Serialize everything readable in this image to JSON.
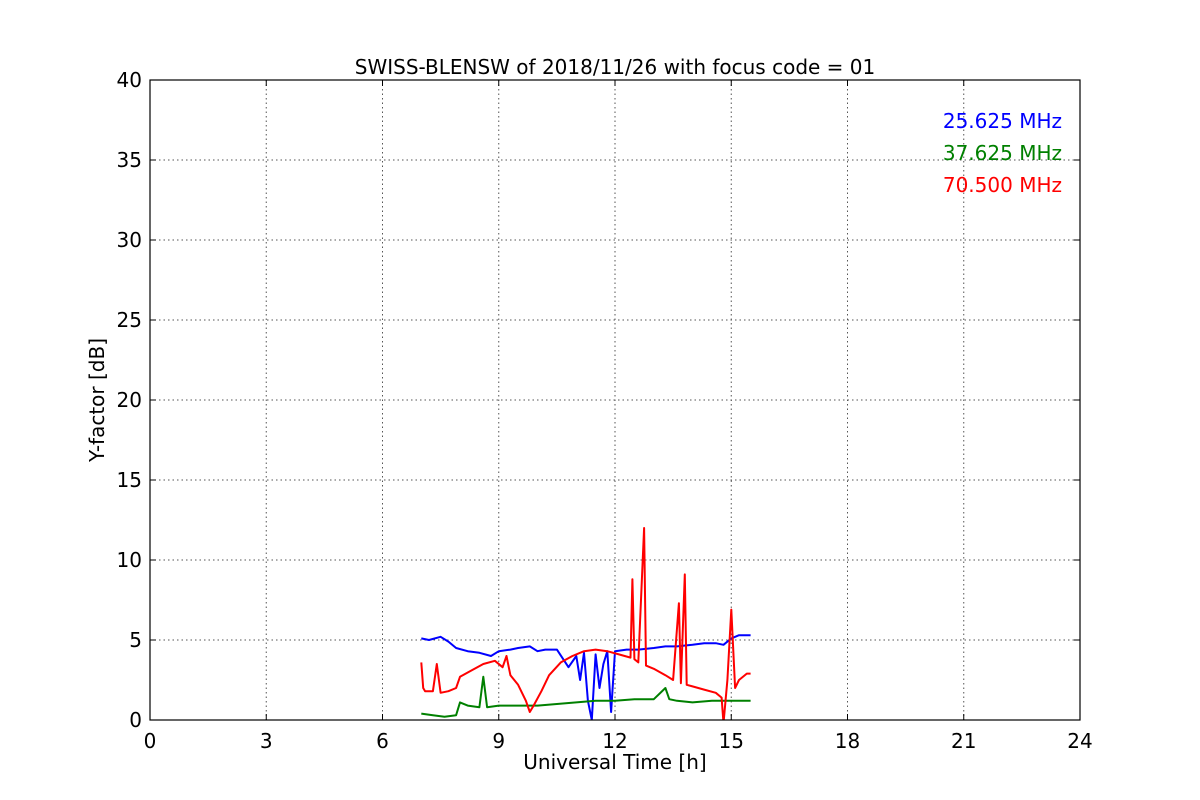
{
  "chart_data": {
    "type": "line",
    "title": "SWISS-BLENSW of 2018/11/26 with focus code = 01",
    "xlabel": "Universal Time [h]",
    "ylabel": "Y-factor [dB]",
    "xlim": [
      0,
      24
    ],
    "ylim": [
      0,
      40
    ],
    "x_ticks": [
      0,
      3,
      6,
      9,
      12,
      15,
      18,
      21,
      24
    ],
    "y_ticks": [
      0,
      5,
      10,
      15,
      20,
      25,
      30,
      35,
      40
    ],
    "grid": true,
    "legend_placement": "top-right",
    "series": [
      {
        "name": "25.625 MHz",
        "color": "#0000ff",
        "x": [
          7.0,
          7.2,
          7.5,
          7.7,
          7.9,
          8.2,
          8.5,
          8.8,
          9.0,
          9.3,
          9.5,
          9.8,
          10.0,
          10.2,
          10.5,
          10.8,
          11.0,
          11.1,
          11.2,
          11.3,
          11.4,
          11.5,
          11.6,
          11.7,
          11.8,
          11.9,
          12.0,
          12.3,
          12.6,
          13.0,
          13.3,
          13.6,
          14.0,
          14.3,
          14.6,
          14.8,
          15.0,
          15.2,
          15.5
        ],
        "y": [
          5.1,
          5.0,
          5.2,
          4.9,
          4.5,
          4.3,
          4.2,
          4.0,
          4.3,
          4.4,
          4.5,
          4.6,
          4.3,
          4.4,
          4.4,
          3.3,
          4.0,
          2.5,
          4.2,
          1.2,
          0.0,
          4.1,
          2.0,
          3.5,
          4.3,
          0.5,
          4.3,
          4.4,
          4.4,
          4.5,
          4.6,
          4.6,
          4.7,
          4.8,
          4.8,
          4.7,
          5.1,
          5.3,
          5.3
        ]
      },
      {
        "name": "37.625 MHz",
        "color": "#008000",
        "x": [
          7.0,
          7.3,
          7.6,
          7.9,
          8.0,
          8.2,
          8.5,
          8.6,
          8.7,
          9.0,
          9.5,
          10.0,
          10.5,
          11.0,
          11.5,
          12.0,
          12.5,
          13.0,
          13.3,
          13.4,
          13.6,
          14.0,
          14.5,
          15.0,
          15.5
        ],
        "y": [
          0.4,
          0.3,
          0.2,
          0.3,
          1.1,
          0.9,
          0.8,
          2.7,
          0.8,
          0.9,
          0.9,
          0.9,
          1.0,
          1.1,
          1.2,
          1.2,
          1.3,
          1.3,
          2.0,
          1.3,
          1.2,
          1.1,
          1.2,
          1.2,
          1.2
        ]
      },
      {
        "name": "70.500 MHz",
        "color": "#ff0000",
        "x": [
          7.0,
          7.05,
          7.1,
          7.3,
          7.4,
          7.5,
          7.7,
          7.9,
          8.0,
          8.3,
          8.6,
          8.9,
          9.1,
          9.2,
          9.3,
          9.5,
          9.7,
          9.8,
          9.9,
          10.1,
          10.3,
          10.6,
          10.9,
          11.2,
          11.5,
          11.8,
          12.1,
          12.4,
          12.45,
          12.5,
          12.6,
          12.75,
          12.8,
          13.0,
          13.3,
          13.5,
          13.65,
          13.7,
          13.8,
          13.85,
          14.0,
          14.3,
          14.6,
          14.75,
          14.8,
          14.9,
          15.0,
          15.1,
          15.2,
          15.4,
          15.5
        ],
        "y": [
          3.6,
          2.0,
          1.8,
          1.8,
          3.5,
          1.7,
          1.8,
          2.0,
          2.7,
          3.1,
          3.5,
          3.7,
          3.3,
          4.0,
          2.8,
          2.2,
          1.2,
          0.5,
          0.9,
          1.8,
          2.8,
          3.6,
          4.0,
          4.3,
          4.4,
          4.3,
          4.1,
          3.9,
          8.8,
          3.8,
          3.6,
          12.0,
          3.4,
          3.2,
          2.8,
          2.5,
          7.3,
          2.3,
          9.1,
          2.2,
          2.1,
          1.9,
          1.7,
          1.4,
          -0.2,
          2.5,
          6.9,
          2.0,
          2.5,
          2.9,
          2.9
        ]
      }
    ]
  }
}
